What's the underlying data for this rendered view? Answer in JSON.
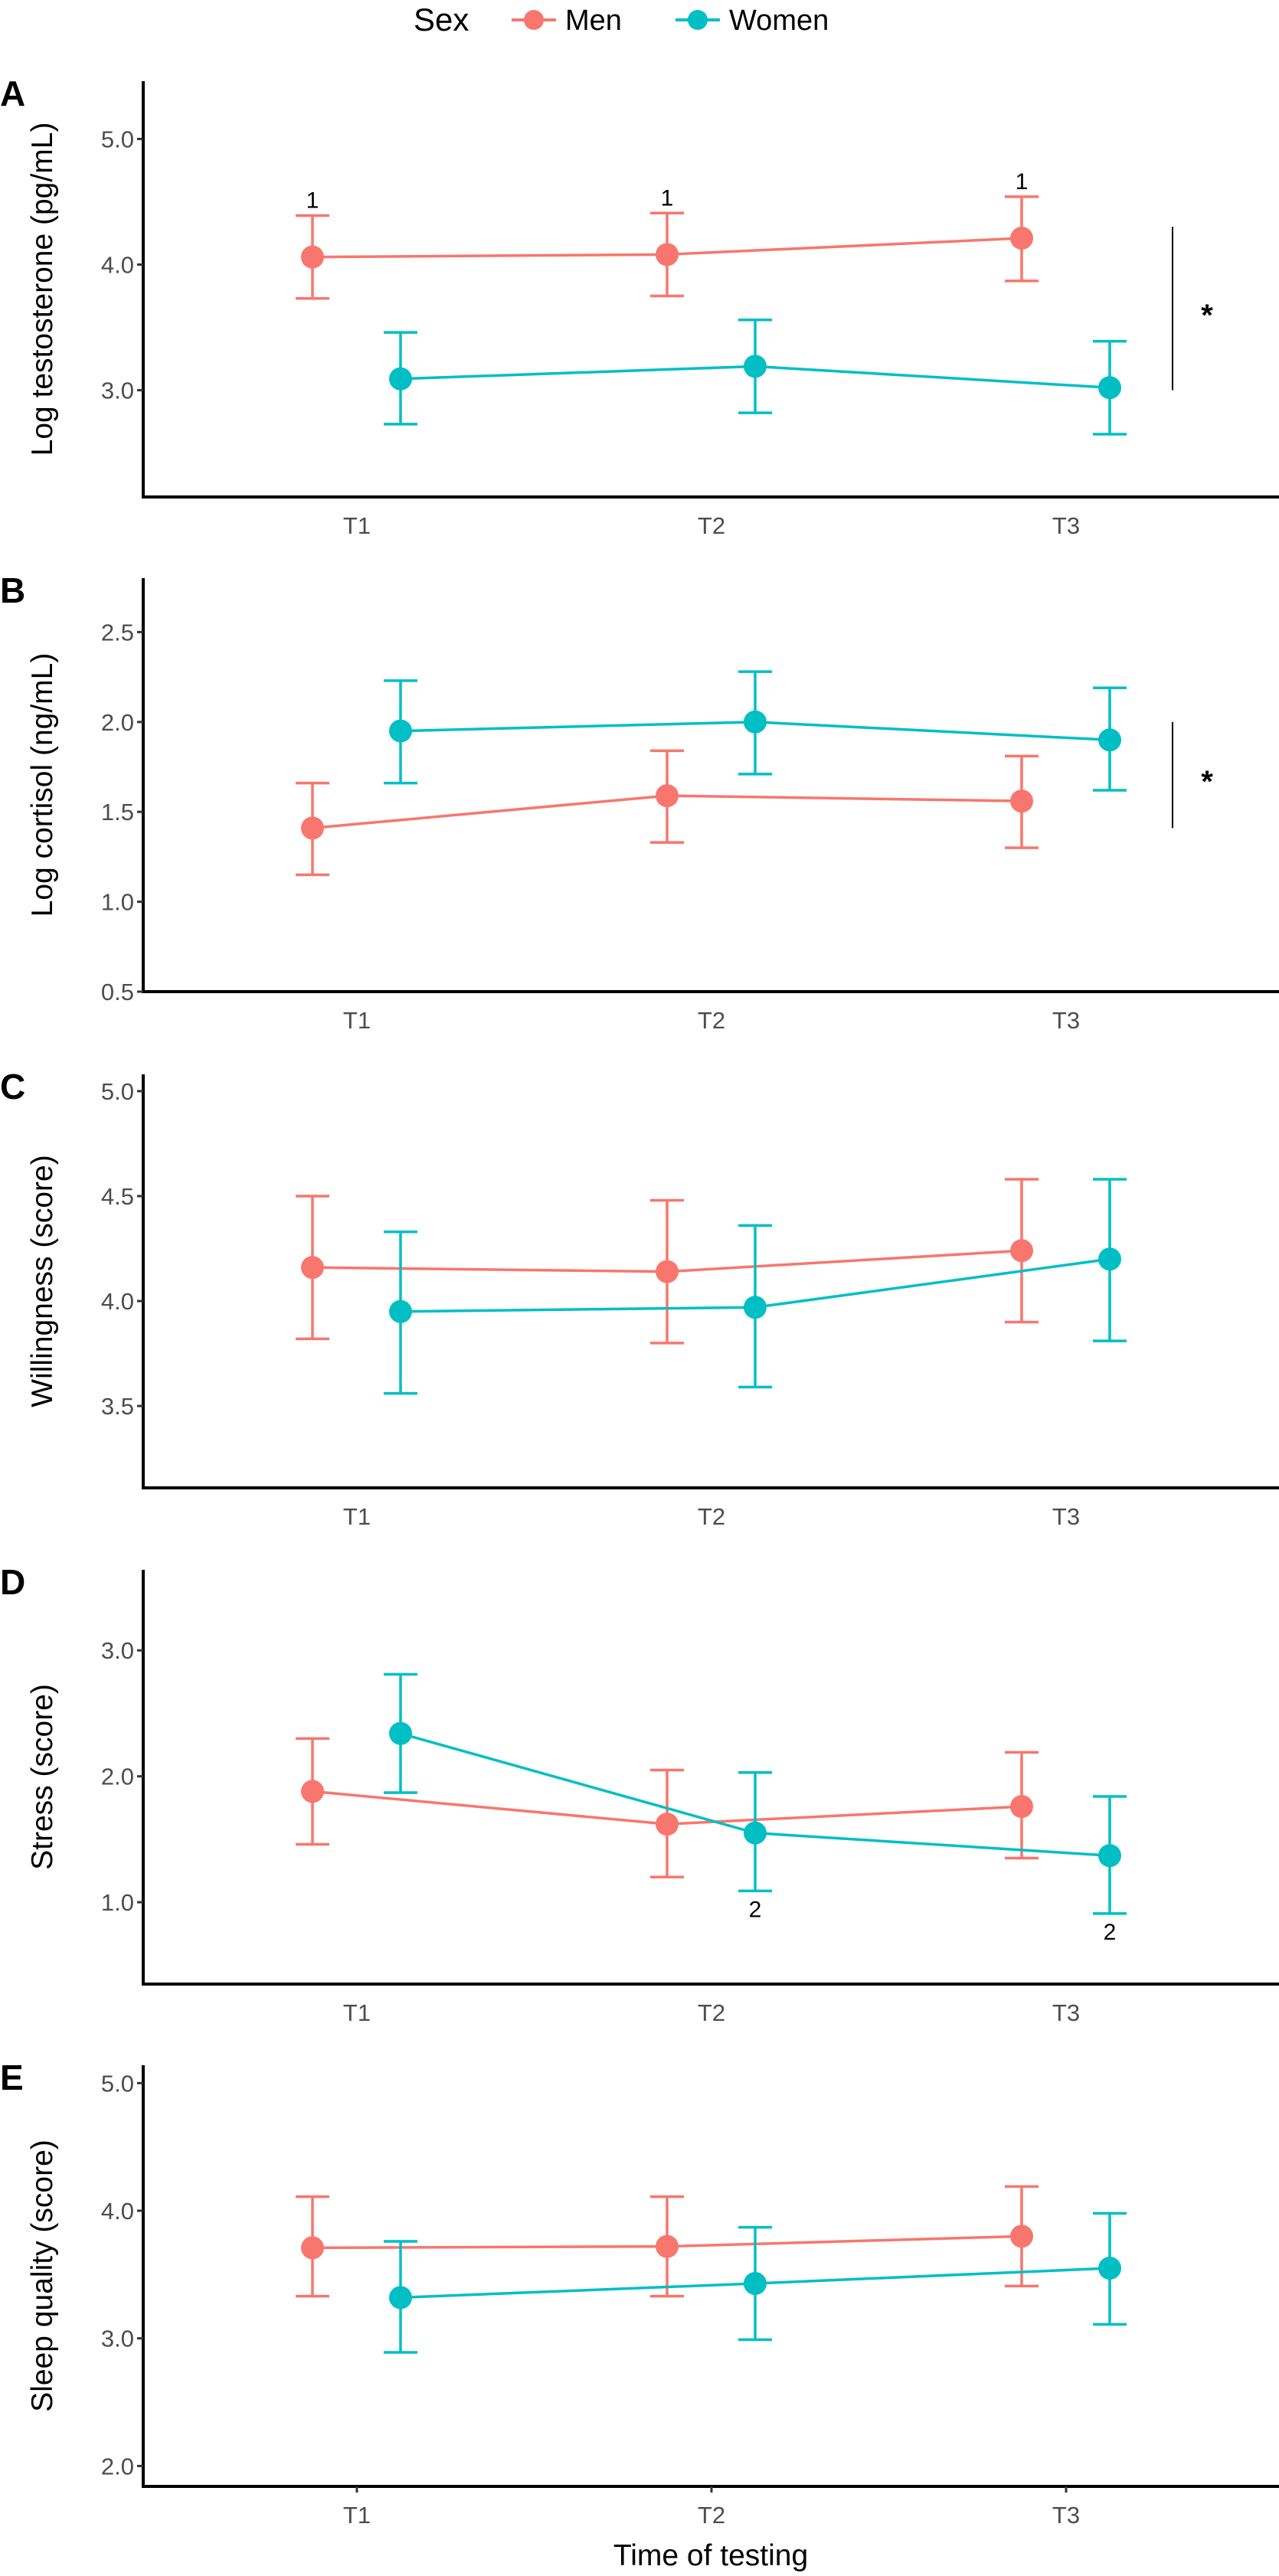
{
  "legend": {
    "title": "Sex",
    "entries": [
      {
        "label": "Men",
        "color": "#F8766D"
      },
      {
        "label": "Women",
        "color": "#00BFC4"
      }
    ]
  },
  "chart_data": [
    {
      "type": "line",
      "panel": "A",
      "title": "",
      "xlabel": "",
      "ylabel": "Log testosterone (pg/mL)",
      "categories": [
        "T1",
        "T2",
        "T3"
      ],
      "yticks": [
        "3.0",
        "4.0",
        "5.0"
      ],
      "ylim": [
        2.15,
        5.46
      ],
      "series": [
        {
          "name": "Men",
          "values": [
            4.06,
            4.08,
            4.21
          ],
          "lower": [
            3.73,
            3.75,
            3.87
          ],
          "upper": [
            4.39,
            4.41,
            4.54
          ],
          "labels": [
            "1",
            "1",
            "1"
          ],
          "label_position": "above"
        },
        {
          "name": "Women",
          "values": [
            3.09,
            3.19,
            3.02
          ],
          "lower": [
            2.73,
            2.82,
            2.65
          ],
          "upper": [
            3.46,
            3.56,
            3.39
          ],
          "labels": [
            "",
            "",
            ""
          ],
          "label_position": "below"
        }
      ],
      "significance": {
        "label": "*",
        "from": 4.3,
        "to": 3.0
      }
    },
    {
      "type": "line",
      "panel": "B",
      "title": "",
      "xlabel": "",
      "ylabel": "Log cortisol (ng/mL)",
      "categories": [
        "T1",
        "T2",
        "T3"
      ],
      "yticks": [
        "0.5",
        "1.0",
        "1.5",
        "2.0",
        "2.5"
      ],
      "ylim": [
        0.5,
        2.8
      ],
      "series": [
        {
          "name": "Men",
          "values": [
            1.41,
            1.59,
            1.56
          ],
          "lower": [
            1.15,
            1.33,
            1.3
          ],
          "upper": [
            1.66,
            1.84,
            1.81
          ],
          "labels": [
            "",
            "",
            ""
          ],
          "label_position": "above"
        },
        {
          "name": "Women",
          "values": [
            1.95,
            2.0,
            1.9
          ],
          "lower": [
            1.66,
            1.71,
            1.62
          ],
          "upper": [
            2.23,
            2.28,
            2.19
          ],
          "labels": [
            "",
            "",
            ""
          ],
          "label_position": "below"
        }
      ],
      "significance": {
        "label": "*",
        "from": 2.0,
        "to": 1.41
      }
    },
    {
      "type": "line",
      "panel": "C",
      "title": "",
      "xlabel": "",
      "ylabel": "Willingness (score)",
      "categories": [
        "T1",
        "T2",
        "T3"
      ],
      "yticks": [
        "3.5",
        "4.0",
        "4.5",
        "5.0"
      ],
      "ylim": [
        3.11,
        5.08
      ],
      "series": [
        {
          "name": "Men",
          "values": [
            4.16,
            4.14,
            4.24
          ],
          "lower": [
            3.82,
            3.8,
            3.9
          ],
          "upper": [
            4.5,
            4.48,
            4.58
          ],
          "labels": [
            "",
            "",
            ""
          ],
          "label_position": "above"
        },
        {
          "name": "Women",
          "values": [
            3.95,
            3.97,
            4.2
          ],
          "lower": [
            3.56,
            3.59,
            3.81
          ],
          "upper": [
            4.33,
            4.36,
            4.58
          ],
          "labels": [
            "",
            "",
            ""
          ],
          "label_position": "below"
        }
      ],
      "significance": null
    },
    {
      "type": "line",
      "panel": "D",
      "title": "",
      "xlabel": "",
      "ylabel": "Stress (score)",
      "categories": [
        "T1",
        "T2",
        "T3"
      ],
      "yticks": [
        "1.0",
        "2.0",
        "3.0"
      ],
      "ylim": [
        0.35,
        3.64
      ],
      "series": [
        {
          "name": "Men",
          "values": [
            1.88,
            1.62,
            1.76
          ],
          "lower": [
            1.46,
            1.2,
            1.35
          ],
          "upper": [
            2.3,
            2.05,
            2.19
          ],
          "labels": [
            "",
            "",
            ""
          ],
          "label_position": "above"
        },
        {
          "name": "Women",
          "values": [
            2.34,
            1.55,
            1.37
          ],
          "lower": [
            1.87,
            1.09,
            0.91
          ],
          "upper": [
            2.81,
            2.03,
            1.84
          ],
          "labels": [
            "",
            "2",
            "2"
          ],
          "label_position": "below"
        }
      ],
      "significance": null
    },
    {
      "type": "line",
      "panel": "E",
      "title": "",
      "xlabel": "Time of testing",
      "ylabel": "Sleep quality (score)",
      "categories": [
        "T1",
        "T2",
        "T3"
      ],
      "yticks": [
        "2.0",
        "3.0",
        "4.0",
        "5.0"
      ],
      "ylim": [
        1.84,
        5.14
      ],
      "series": [
        {
          "name": "Men",
          "values": [
            3.71,
            3.72,
            3.8
          ],
          "lower": [
            3.33,
            3.33,
            3.41
          ],
          "upper": [
            4.11,
            4.11,
            4.19
          ],
          "labels": [
            "",
            "",
            ""
          ],
          "label_position": "above"
        },
        {
          "name": "Women",
          "values": [
            3.32,
            3.43,
            3.55
          ],
          "lower": [
            2.89,
            2.99,
            3.11
          ],
          "upper": [
            3.76,
            3.87,
            3.98
          ],
          "labels": [
            "",
            "",
            ""
          ],
          "label_position": "below"
        }
      ],
      "significance": null
    }
  ]
}
